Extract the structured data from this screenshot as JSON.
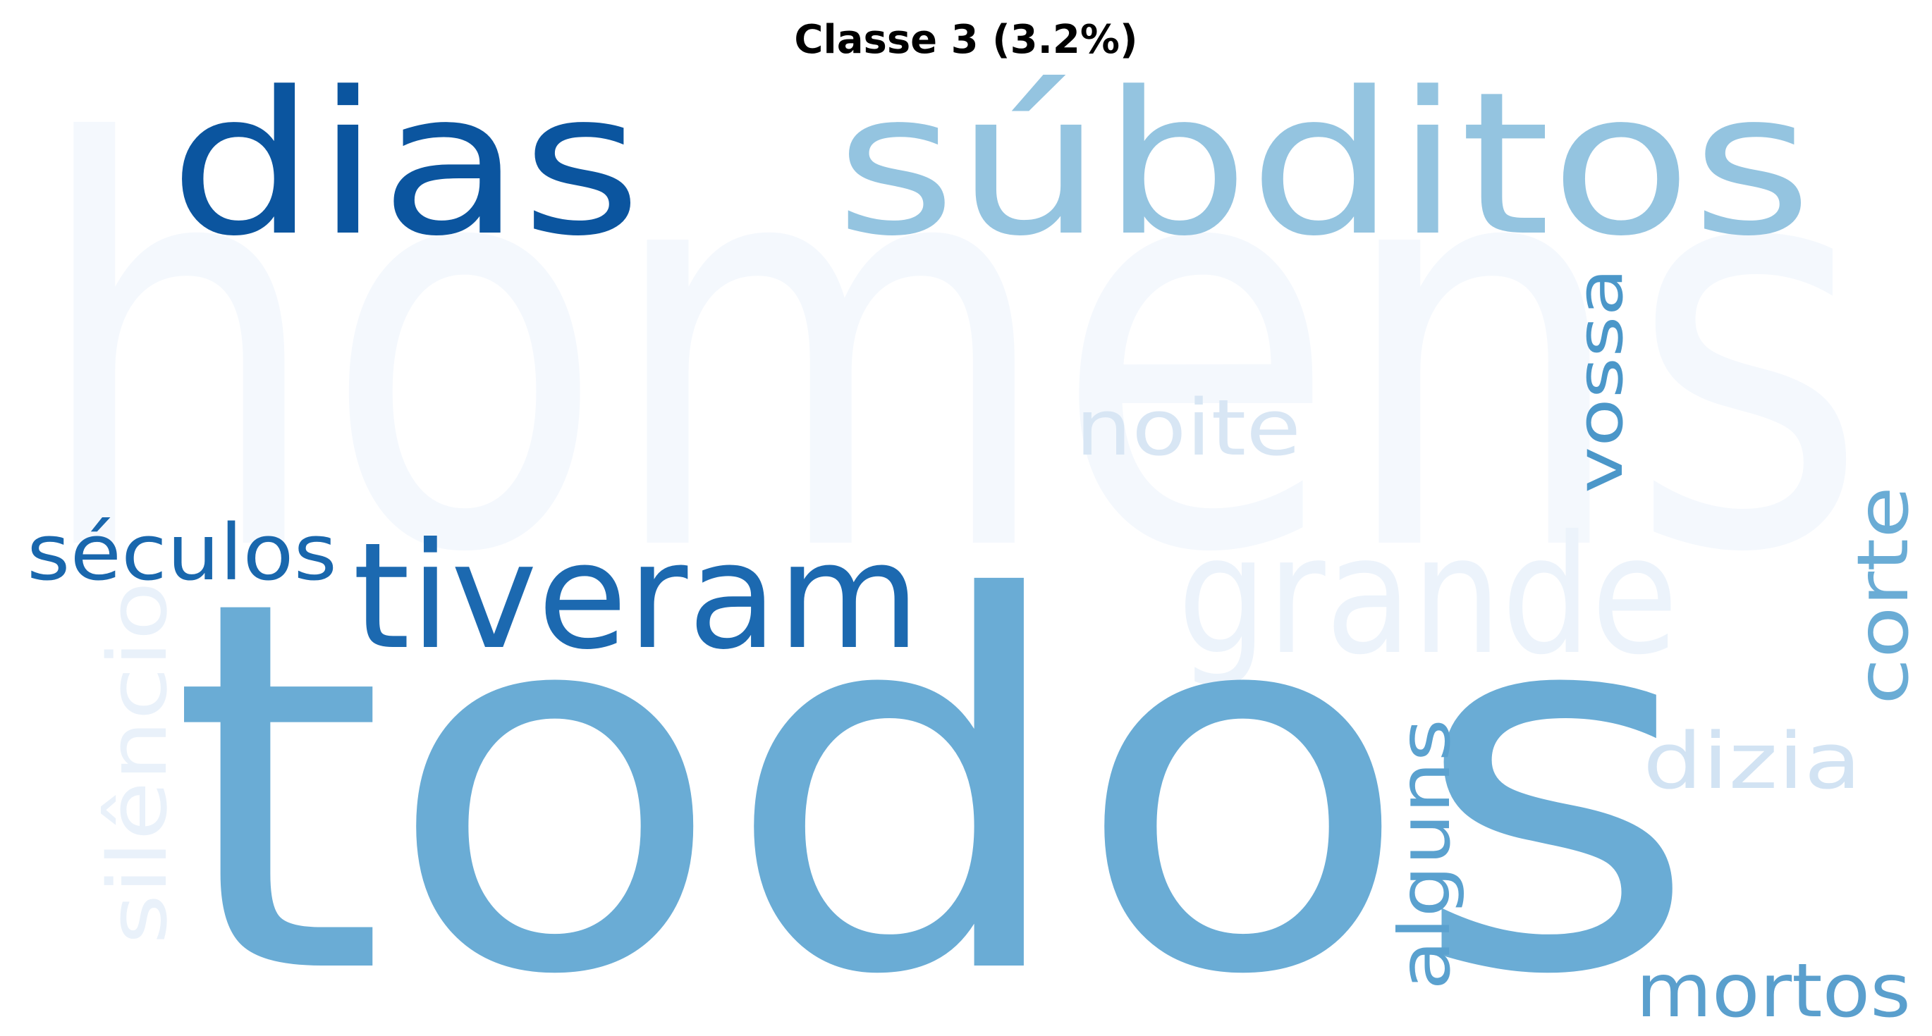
{
  "title": "Classe 3 (3.2%)",
  "words": [
    {
      "text": "homens",
      "color": "#f4f8fd",
      "rotated": false
    },
    {
      "text": "todos",
      "color": "#6aacd5",
      "rotated": false
    },
    {
      "text": "dias",
      "color": "#0b559f",
      "rotated": false
    },
    {
      "text": "súbditos",
      "color": "#94c4e0",
      "rotated": false
    },
    {
      "text": "tiveram",
      "color": "#1c69b0",
      "rotated": false
    },
    {
      "text": "grande",
      "color": "#ecf3fb",
      "rotated": false
    },
    {
      "text": "séculos",
      "color": "#1967ad",
      "rotated": false
    },
    {
      "text": "noite",
      "color": "#d8e6f4",
      "rotated": false
    },
    {
      "text": "vossa",
      "color": "#4b97c9",
      "rotated": true
    },
    {
      "text": "corte",
      "color": "#6aacd5",
      "rotated": true
    },
    {
      "text": "silêncio",
      "color": "#e9f1fa",
      "rotated": true
    },
    {
      "text": "alguns",
      "color": "#5aa1cf",
      "rotated": true
    },
    {
      "text": "dizia",
      "color": "#d2e3f3",
      "rotated": false
    },
    {
      "text": "mortos",
      "color": "#5a9fcd",
      "rotated": false
    }
  ]
}
